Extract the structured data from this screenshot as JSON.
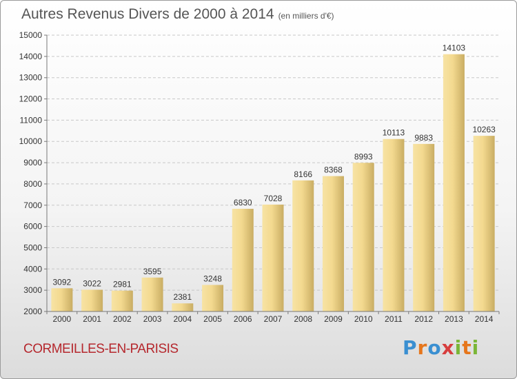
{
  "title": "Autres Revenus Divers de 2000 à 2014",
  "unit_label": "(en milliers d'€)",
  "place_name": "CORMEILLES-EN-PARISIS",
  "brand": "Proxiti",
  "colors": {
    "bar_light": "#f7e3a4",
    "bar_dark": "#c9ad63",
    "place": "#b5272d"
  },
  "chart_data": {
    "type": "bar",
    "title": "Autres Revenus Divers de 2000 à 2014",
    "xlabel": "",
    "ylabel": "",
    "ylim": [
      2000,
      15000
    ],
    "yticks": [
      2000,
      3000,
      4000,
      5000,
      6000,
      7000,
      8000,
      9000,
      10000,
      11000,
      12000,
      13000,
      14000,
      15000
    ],
    "grid": "horizontal dashed",
    "categories": [
      "2000",
      "2001",
      "2002",
      "2003",
      "2004",
      "2005",
      "2006",
      "2007",
      "2008",
      "2009",
      "2010",
      "2011",
      "2012",
      "2013",
      "2014"
    ],
    "values": [
      3092,
      3022,
      2981,
      3595,
      2381,
      3248,
      6830,
      7028,
      8166,
      8368,
      8993,
      10113,
      9883,
      14103,
      10263
    ]
  }
}
